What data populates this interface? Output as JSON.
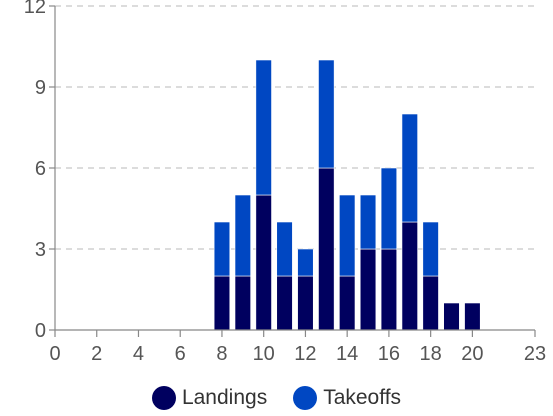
{
  "chart_data": {
    "type": "bar",
    "stacked": true,
    "x": [
      8,
      9,
      10,
      11,
      12,
      13,
      14,
      15,
      16,
      17,
      18,
      19,
      20
    ],
    "series": [
      {
        "name": "Landings",
        "color": "#00005f",
        "values": [
          2,
          2,
          5,
          2,
          2,
          6,
          2,
          3,
          3,
          4,
          2,
          1,
          1
        ]
      },
      {
        "name": "Takeoffs",
        "color": "#0047c2",
        "values": [
          2,
          3,
          5,
          2,
          1,
          4,
          3,
          2,
          3,
          4,
          2,
          0,
          0
        ]
      }
    ],
    "x_ticks": [
      "0",
      "2",
      "4",
      "6",
      "8",
      "10",
      "12",
      "14",
      "16",
      "18",
      "20",
      "23"
    ],
    "y_ticks": [
      "0",
      "3",
      "6",
      "9",
      "12"
    ],
    "xlim": [
      0,
      23
    ],
    "ylim": [
      0,
      12
    ],
    "grid": "horizontal dashed",
    "legend_position": "bottom"
  }
}
